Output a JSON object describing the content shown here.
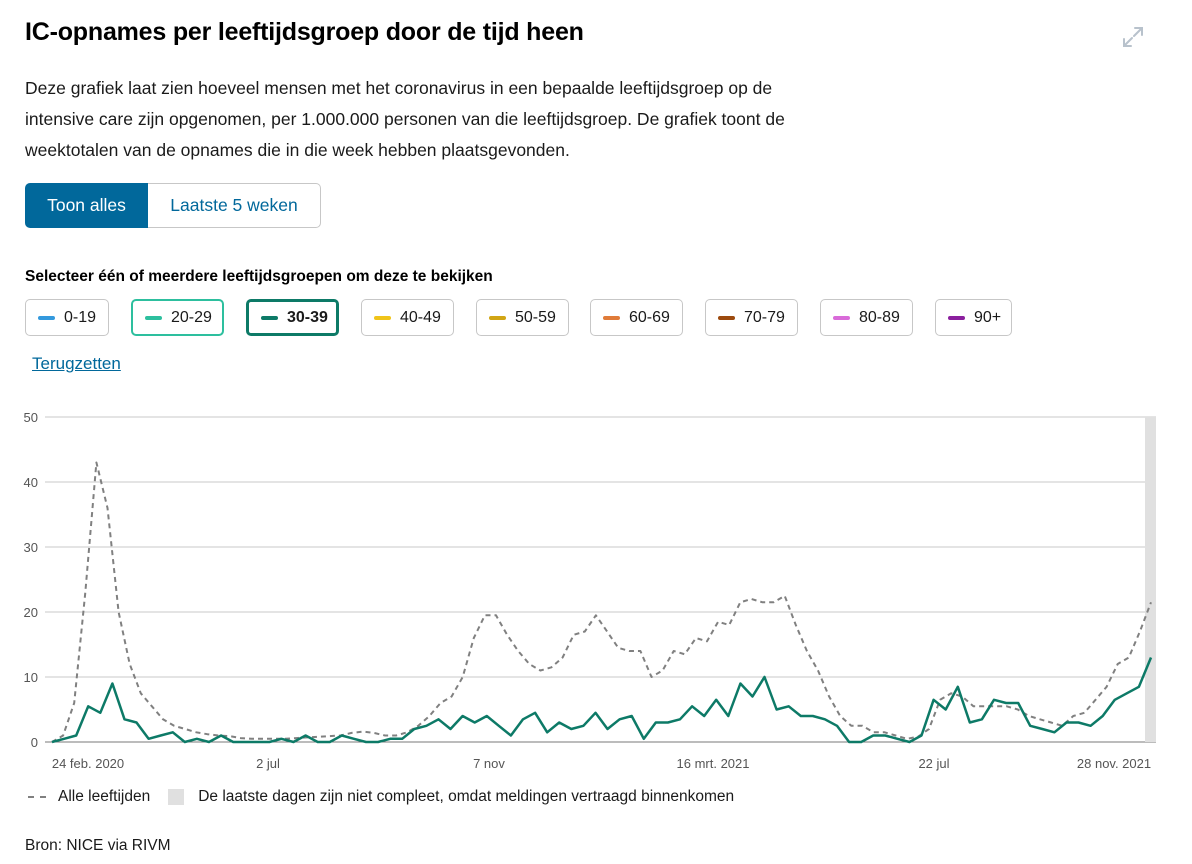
{
  "header": {
    "title": "IC-opnames per leeftijdsgroep door de tijd heen",
    "description": "Deze grafiek laat zien hoeveel mensen met het coronavirus in een bepaalde leeftijdsgroep op de intensive care zijn opgenomen, per 1.000.000 personen van die leeftijdsgroep. De grafiek toont de weektotalen van de opnames die in die week hebben plaatsgevonden."
  },
  "toggle": {
    "all_label": "Toon alles",
    "recent_label": "Laatste 5 weken",
    "active": "all"
  },
  "selector": {
    "label": "Selecteer één of meerdere leeftijdsgroepen om deze te bekijken",
    "groups": [
      {
        "label": "0-19",
        "color": "#3399dd",
        "selected": false
      },
      {
        "label": "20-29",
        "color": "#2dbf9e",
        "selected": true
      },
      {
        "label": "30-39",
        "color": "#0d7a67",
        "selected": true
      },
      {
        "label": "40-49",
        "color": "#f0c419",
        "selected": false
      },
      {
        "label": "50-59",
        "color": "#d1a514",
        "selected": false
      },
      {
        "label": "60-69",
        "color": "#e07b39",
        "selected": false
      },
      {
        "label": "70-79",
        "color": "#9c4a0e",
        "selected": false
      },
      {
        "label": "80-89",
        "color": "#d96bd9",
        "selected": false
      },
      {
        "label": "90+",
        "color": "#8b1f9e",
        "selected": false
      }
    ],
    "reset_label": "Terugzetten"
  },
  "chart_data": {
    "type": "line",
    "ylim": [
      0,
      50
    ],
    "yticks": [
      "0",
      "10",
      "20",
      "30",
      "40",
      "50"
    ],
    "xtick_labels": [
      "24 feb. 2020",
      "2 jul",
      "7 nov",
      "16 mrt. 2021",
      "22 jul",
      "28 nov. 2021"
    ],
    "grid": true,
    "series": [
      {
        "name": "Alle leeftijden",
        "color": "#808080",
        "style": "dashed",
        "values": [
          0,
          1,
          6,
          23,
          43,
          36,
          20,
          12,
          7.5,
          5.5,
          3.5,
          2.5,
          2,
          1.5,
          1.2,
          1,
          0.9,
          0.6,
          0.5,
          0.5,
          0.5,
          0.5,
          0.6,
          0.7,
          0.8,
          0.9,
          1,
          1.4,
          1.6,
          1.4,
          1,
          1,
          1.5,
          2.5,
          4,
          6,
          7,
          10,
          16,
          19.5,
          19.5,
          16.5,
          14,
          12,
          11,
          11.5,
          13,
          16.5,
          17,
          19.5,
          17,
          14.5,
          14,
          14,
          10,
          11,
          14,
          13.5,
          16,
          15.5,
          18.5,
          18,
          21.5,
          22,
          21.5,
          21.5,
          22.5,
          18,
          14,
          11,
          7,
          4,
          2.5,
          2.5,
          1.5,
          1.5,
          1,
          0.5,
          0.8,
          2,
          6.5,
          7.5,
          7,
          5.5,
          5.5,
          5.5,
          5.5,
          5,
          4,
          3.5,
          3,
          2.5,
          4,
          4.5,
          6.5,
          8.5,
          12,
          13,
          17,
          21.5
        ]
      },
      {
        "name": "30-39",
        "color": "#0d7a67",
        "style": "solid",
        "values": [
          0,
          0.5,
          1,
          5.5,
          4.5,
          9,
          3.5,
          3,
          0.5,
          1,
          1.5,
          0,
          0.5,
          0,
          1,
          0,
          0,
          0,
          0,
          0.5,
          0,
          1,
          0,
          0,
          1,
          0.5,
          0,
          0,
          0.5,
          0.5,
          2,
          2.5,
          3.5,
          2,
          4,
          3,
          4,
          2.5,
          1,
          3.5,
          4.5,
          1.5,
          3,
          2,
          2.5,
          4.5,
          2,
          3.5,
          4,
          0.5,
          3,
          3,
          3.5,
          5.5,
          4,
          6.5,
          4,
          9,
          7,
          10,
          5,
          5.5,
          4,
          4,
          3.5,
          2.5,
          0,
          0,
          1,
          1,
          0.5,
          0,
          1,
          6.5,
          5,
          8.5,
          3,
          3.5,
          6.5,
          6,
          6,
          2.5,
          2,
          1.5,
          3,
          3,
          2.5,
          4,
          6.5,
          7.5,
          8.5,
          13
        ]
      }
    ]
  },
  "legend": {
    "all_ages_label": "Alle leeftijden",
    "incomplete_label": "De laatste dagen zijn niet compleet, omdat meldingen vertraagd binnenkomen",
    "incomplete_color": "#e0e0e0"
  },
  "footer": {
    "source": "Bron: NICE via RIVM"
  },
  "icons": {
    "expand": "expand-icon"
  }
}
